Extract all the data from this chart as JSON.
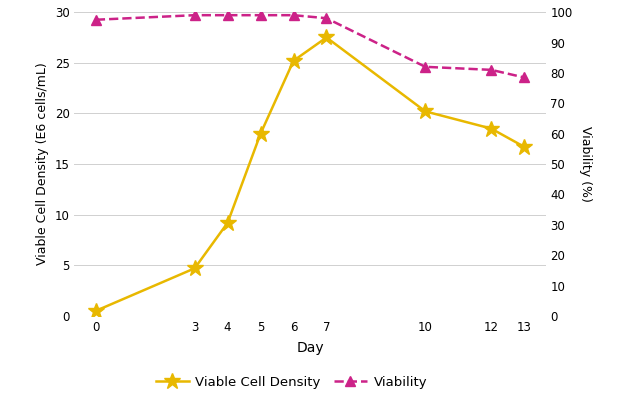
{
  "days": [
    0,
    3,
    4,
    5,
    6,
    7,
    10,
    12,
    13
  ],
  "vcd": [
    0.5,
    4.7,
    9.2,
    18.0,
    25.2,
    27.5,
    20.2,
    18.5,
    16.7
  ],
  "viability": [
    97.5,
    99.0,
    99.0,
    99.0,
    99.0,
    98.0,
    82.0,
    81.0,
    78.5
  ],
  "vcd_color": "#E8B800",
  "viability_color": "#CC2288",
  "xlabel": "Day",
  "ylabel_left": "Viable Cell Density (E6 cells/mL)",
  "ylabel_right": "Viability (%)",
  "ylim_left": [
    0,
    30
  ],
  "ylim_right": [
    0,
    100
  ],
  "yticks_left": [
    0,
    5,
    10,
    15,
    20,
    25,
    30
  ],
  "yticks_right": [
    0,
    10,
    20,
    30,
    40,
    50,
    60,
    70,
    80,
    90,
    100
  ],
  "xticks": [
    0,
    3,
    4,
    5,
    6,
    7,
    10,
    12,
    13
  ],
  "legend_vcd": "Viable Cell Density",
  "legend_viability": "Viability",
  "bg_color": "#ffffff",
  "grid_color": "#d0d0d0"
}
